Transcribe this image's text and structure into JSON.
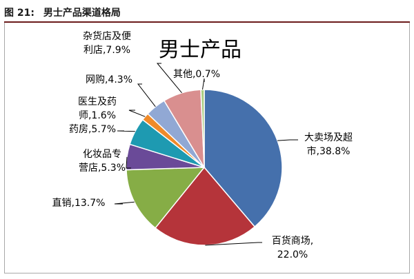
{
  "figure": {
    "label": "图",
    "number": "21:",
    "caption": "男士产品渠道格局"
  },
  "colors": {
    "header_rule": "#6a1a1a",
    "frame": "#a8a8a8"
  },
  "chart_data": {
    "type": "pie",
    "title": "男士产品",
    "start_angle_deg": 0,
    "direction": "clockwise",
    "slices": [
      {
        "label_lines": [
          "大卖场及超",
          "市,38.8%"
        ],
        "value": 38.8,
        "color": "#4570ac"
      },
      {
        "label_lines": [
          "百货商场,",
          "22.0%"
        ],
        "value": 22.0,
        "color": "#b5343a"
      },
      {
        "label_lines": [
          "直销,13.7%"
        ],
        "value": 13.7,
        "color": "#86ad46"
      },
      {
        "label_lines": [
          "化妆品专",
          "营店,5.3%"
        ],
        "value": 5.3,
        "color": "#6a4a98"
      },
      {
        "label_lines": [
          "药房,5.7%"
        ],
        "value": 5.7,
        "color": "#1e9ab1"
      },
      {
        "label_lines": [
          "医生及药",
          "师,1.6%"
        ],
        "value": 1.6,
        "color": "#ef8a2a"
      },
      {
        "label_lines": [
          "网购,4.3%"
        ],
        "value": 4.3,
        "color": "#91a8d4"
      },
      {
        "label_lines": [
          "杂货店及便",
          "利店,7.9%"
        ],
        "value": 7.9,
        "color": "#d98f8f"
      },
      {
        "label_lines": [
          "其他,0.7%"
        ],
        "value": 0.7,
        "color": "#aacd82"
      }
    ]
  }
}
